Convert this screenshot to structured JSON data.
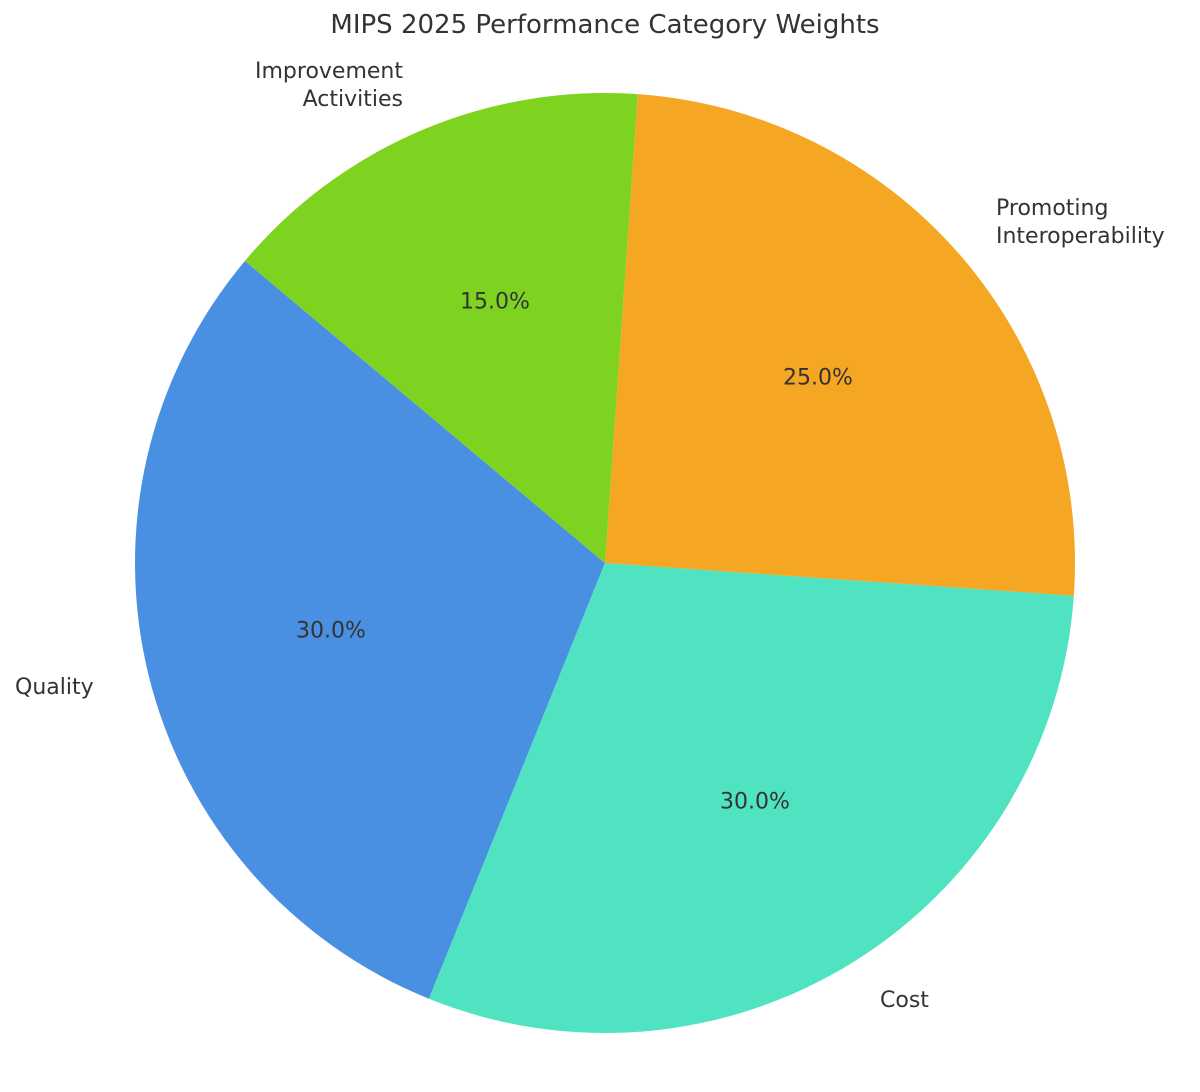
{
  "chart_data": {
    "type": "pie",
    "title": "MIPS 2025 Performance Category Weights",
    "categories": [
      "Quality",
      "Cost",
      "Promoting Interoperability",
      "Improvement Activities"
    ],
    "values": [
      30.0,
      30.0,
      25.0,
      15.0
    ],
    "labels_pct": [
      "30.0%",
      "30.0%",
      "25.0%",
      "15.0%"
    ],
    "colors": [
      "#4a90e2",
      "#50e3c2",
      "#f5a623",
      "#7ed321"
    ],
    "legend": "none",
    "label_lines": {
      "quality": [
        "Quality"
      ],
      "cost": [
        "Cost"
      ],
      "promoting": [
        "Promoting",
        "Interoperability"
      ],
      "improvement": [
        "Improvement",
        "Activities"
      ]
    }
  }
}
